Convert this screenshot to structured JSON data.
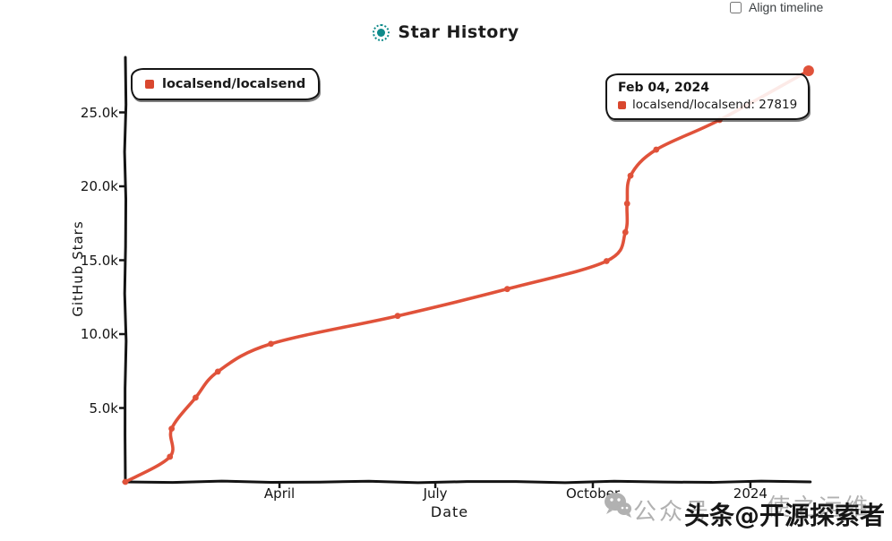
{
  "header": {
    "align_timeline": {
      "label": "Align timeline",
      "checked": false
    },
    "title": "Star History"
  },
  "legend": {
    "items": [
      {
        "label": "localsend/localsend",
        "color": "#d9472e"
      }
    ]
  },
  "tooltip": {
    "date_label": "Feb 04, 2024",
    "entries": [
      {
        "text": "localsend/localsend: 27819",
        "color": "#d9472e"
      }
    ]
  },
  "chart_data": {
    "type": "line",
    "title": "Star History",
    "xlabel": "Date",
    "ylabel": "GitHub Stars",
    "legend_position": "top-left",
    "grid": false,
    "x_axis": {
      "start_date": "2023-01-01",
      "end_date": "2024-02-05"
    },
    "x_ticks": [
      {
        "date": "2023-04-01",
        "label": "April"
      },
      {
        "date": "2023-07-01",
        "label": "July"
      },
      {
        "date": "2023-10-01",
        "label": "October"
      },
      {
        "date": "2024-01-01",
        "label": "2024"
      }
    ],
    "y_ticks": [
      {
        "value": 5000,
        "label": "5.0k"
      },
      {
        "value": 10000,
        "label": "10.0k"
      },
      {
        "value": 15000,
        "label": "15.0k"
      },
      {
        "value": 20000,
        "label": "20.0k"
      },
      {
        "value": 25000,
        "label": "25.0k"
      }
    ],
    "ylim": [
      0,
      28600
    ],
    "series": [
      {
        "name": "localsend/localsend",
        "color": "#e0523a",
        "points": [
          {
            "date": "2023-01-01",
            "value": 0
          },
          {
            "date": "2023-01-27",
            "value": 1700
          },
          {
            "date": "2023-01-28",
            "value": 3600
          },
          {
            "date": "2023-02-11",
            "value": 5700
          },
          {
            "date": "2023-02-24",
            "value": 7460
          },
          {
            "date": "2023-03-27",
            "value": 9340
          },
          {
            "date": "2023-06-09",
            "value": 11230
          },
          {
            "date": "2023-08-12",
            "value": 13050
          },
          {
            "date": "2023-10-09",
            "value": 14940
          },
          {
            "date": "2023-10-20",
            "value": 16890
          },
          {
            "date": "2023-10-21",
            "value": 18830
          },
          {
            "date": "2023-10-23",
            "value": 20720
          },
          {
            "date": "2023-11-07",
            "value": 22480
          },
          {
            "date": "2023-12-14",
            "value": 24490
          },
          {
            "date": "2024-02-04",
            "value": 27819
          }
        ]
      }
    ],
    "hover_point": {
      "series": "localsend/localsend",
      "date": "2024-02-04",
      "value": 27819
    }
  },
  "watermarks": {
    "wechat_fragment_left": "公众号",
    "wechat_fragment_right": "使之运维",
    "toutiao": "头条@开源探索者"
  },
  "colors": {
    "series_line": "#e0523a",
    "swatch": "#d9472e",
    "axis": "#141414",
    "logo_teal": "#0e8a8a",
    "watermark_gray": "#b1b1b1"
  }
}
